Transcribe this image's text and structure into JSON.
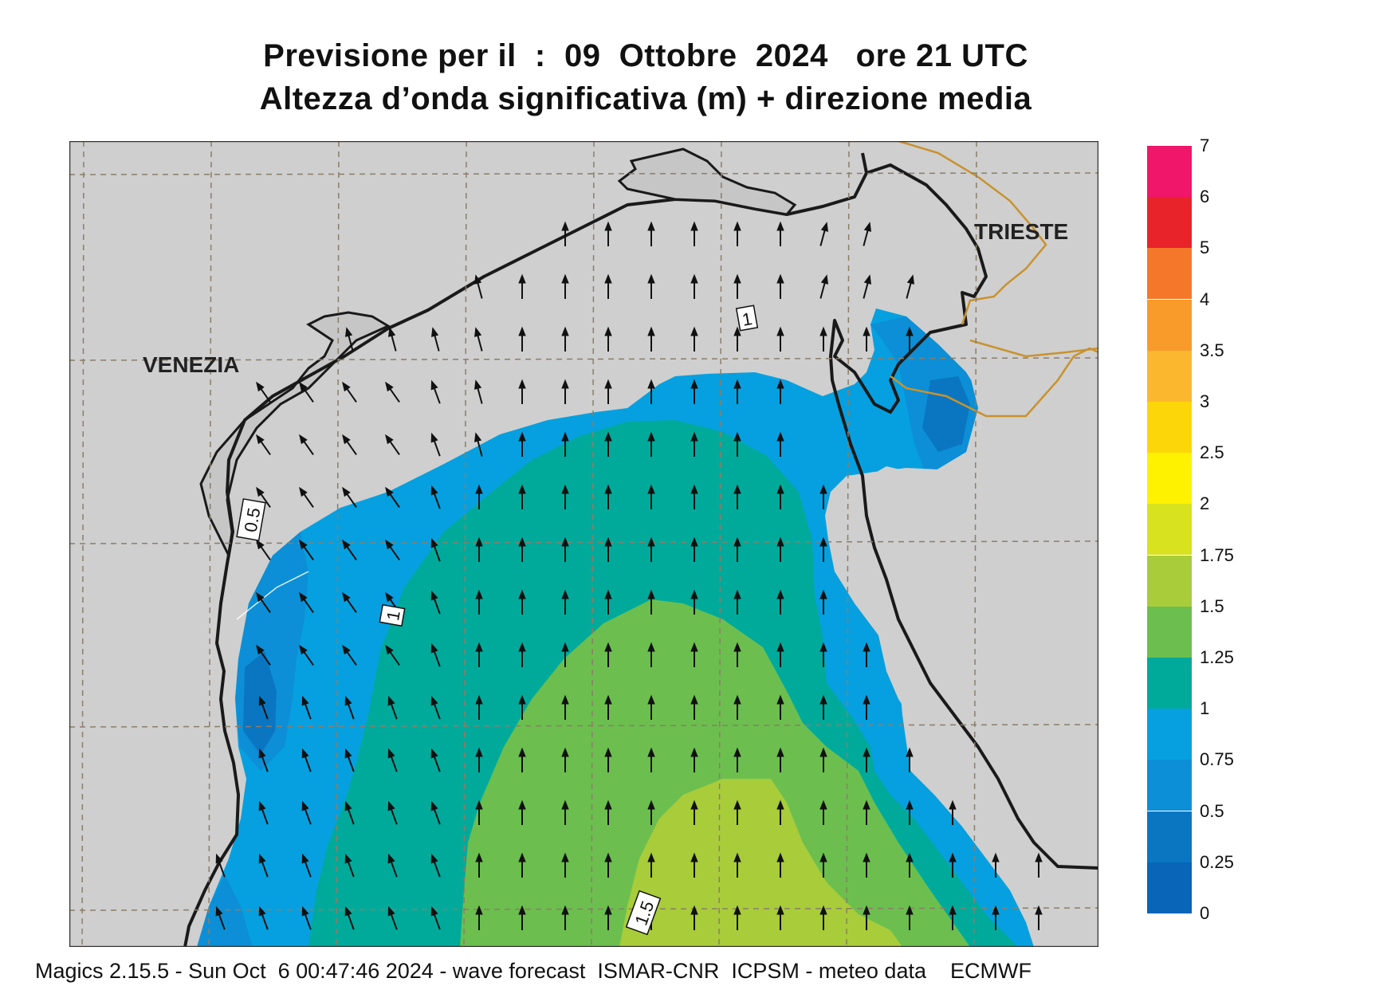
{
  "header": {
    "title_line1": "Previsione per il  :  09  Ottobre  2024   ore 21 UTC",
    "title_line2": "Altezza d’onda significativa (m) + direzione media"
  },
  "map": {
    "places": {
      "venezia": "VENEZIA",
      "trieste": "TRIESTE"
    },
    "contour_labels": [
      "0.5",
      "1",
      "1",
      "1.5"
    ],
    "colors": {
      "land": "#cfcfcf",
      "coast": "#1a1a1a",
      "border": "#c8922e",
      "grid": "#8a7e6a",
      "arrow": "#111111"
    }
  },
  "legend": {
    "labels": [
      "7",
      "6",
      "5",
      "4",
      "3.5",
      "3",
      "2.5",
      "2",
      "1.75",
      "1.5",
      "1.25",
      "1",
      "0.75",
      "0.5",
      "0.25",
      "0"
    ],
    "colors": [
      "#f0166a",
      "#e8232a",
      "#f5782a",
      "#f89b2a",
      "#fbb82e",
      "#fdd60a",
      "#fff200",
      "#d8e21e",
      "#a9cc3a",
      "#6cbf4e",
      "#00aa9b",
      "#06a0e0",
      "#0c8fd6",
      "#0a76c2",
      "#0865b8"
    ]
  },
  "footer": {
    "text": "Magics 2.15.5 - Sun Oct  6 00:47:46 2024 - wave forecast  ISMAR-CNR  ICPSM - meteo data    ECMWF"
  }
}
